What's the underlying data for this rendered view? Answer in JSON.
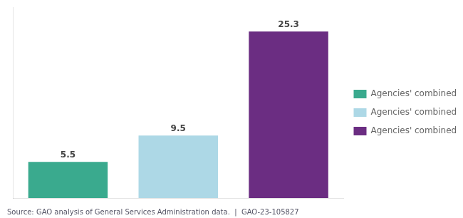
{
  "chart_data": {
    "type": "bar",
    "categories": [
      null,
      null,
      null
    ],
    "series": [
      {
        "name": "Agencies' combined ZEV orders",
        "color": "#3aaa8e",
        "values": [
          5.5,
          null,
          null
        ]
      },
      {
        "name": "Agencies' combined ZEV acquisition targets",
        "color": "#add8e6",
        "values": [
          null,
          9.5,
          null
        ]
      },
      {
        "name": "Agencies' combined gas vehicle orders",
        "color": "#6b2d82",
        "values": [
          null,
          null,
          25.3
        ]
      }
    ],
    "ylim": [
      0,
      29
    ],
    "grid": false,
    "tick_labels": false,
    "data_labels": true,
    "legend": "right",
    "annotations": [
      "Source: GAO analysis of General Services Administration data.  |  GAO-23-105827"
    ]
  }
}
